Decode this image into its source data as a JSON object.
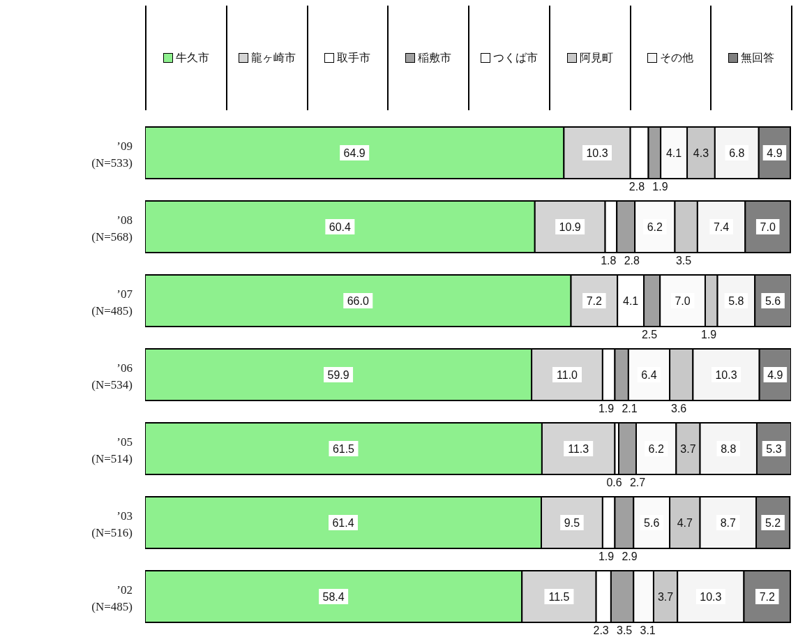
{
  "chart_data": {
    "type": "bar",
    "orientation": "horizontal",
    "stacked": true,
    "data_labels": true,
    "legend": "top",
    "grid": false,
    "categories": [
      "’09\n(N=533)",
      "’08\n(N=568)",
      "’07\n(N=485)",
      "’06\n(N=534)",
      "’05\n(N=514)",
      "’03\n(N=516)",
      "’02\n(N=485)"
    ],
    "series": [
      {
        "name": "牛久市",
        "color": "#8ef08e",
        "values": [
          64.9,
          60.4,
          66.0,
          59.9,
          61.5,
          61.4,
          58.4
        ],
        "value_labels": [
          "64.9",
          "60.4",
          "66.0",
          "59.9",
          "61.5",
          "61.4",
          "58.4"
        ]
      },
      {
        "name": "龍ヶ崎市",
        "color": "#d4d4d4",
        "values": [
          10.3,
          10.9,
          7.2,
          11.0,
          11.3,
          9.5,
          11.5
        ],
        "value_labels": [
          "10.3",
          "10.9",
          "7.2",
          "11.0",
          "11.3",
          "9.5",
          "11.5"
        ]
      },
      {
        "name": "取手市",
        "color": "#ffffff",
        "values": [
          2.8,
          1.8,
          4.1,
          1.9,
          0.6,
          1.9,
          2.3
        ],
        "value_labels": [
          "2.8",
          "1.8",
          "4.1",
          "1.9",
          "0.6",
          "1.9",
          "2.3"
        ]
      },
      {
        "name": "稲敷市",
        "color": "#a0a0a0",
        "values": [
          1.9,
          2.8,
          2.5,
          2.1,
          2.7,
          2.9,
          3.5
        ],
        "value_labels": [
          "1.9",
          "2.8",
          "2.5",
          "2.1",
          "2.7",
          "2.9",
          "3.5"
        ]
      },
      {
        "name": "つくば市",
        "color": "#fafafa",
        "values": [
          4.1,
          6.2,
          7.0,
          6.4,
          6.2,
          5.6,
          3.1
        ],
        "value_labels": [
          "4.1",
          "6.2",
          "7.0",
          "6.4",
          "6.2",
          "5.6",
          "3.1"
        ]
      },
      {
        "name": "阿見町",
        "color": "#c8c8c8",
        "values": [
          4.3,
          3.5,
          1.9,
          3.6,
          3.7,
          4.7,
          3.7
        ],
        "value_labels": [
          "4.3",
          "3.5",
          "1.9",
          "3.6",
          "3.7",
          "4.7",
          "3.7"
        ]
      },
      {
        "name": "その他",
        "color": "#f5f5f5",
        "values": [
          6.8,
          7.4,
          5.8,
          10.3,
          8.8,
          8.7,
          10.3
        ],
        "value_labels": [
          "6.8",
          "7.4",
          "5.8",
          "10.3",
          "8.8",
          "8.7",
          "10.3"
        ]
      },
      {
        "name": "無回答",
        "color": "#808080",
        "values": [
          4.9,
          7.0,
          5.6,
          4.9,
          5.3,
          5.2,
          7.2
        ],
        "value_labels": [
          "4.9",
          "7.0",
          "5.6",
          "4.9",
          "5.3",
          "5.2",
          "7.2"
        ]
      }
    ]
  }
}
